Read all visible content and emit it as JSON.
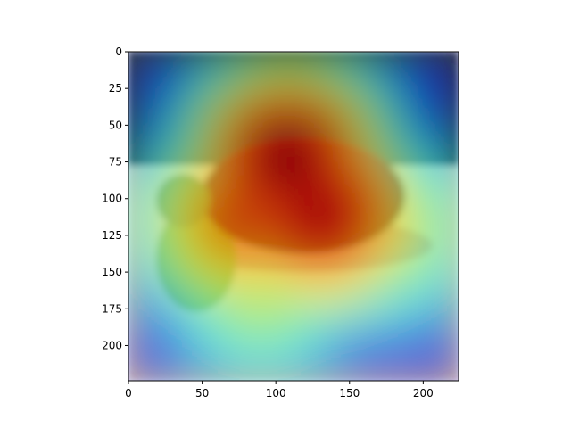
{
  "chart_data": {
    "type": "heatmap",
    "title": "",
    "xlabel": "",
    "ylabel": "",
    "xlim": [
      0,
      224
    ],
    "ylim": [
      224,
      0
    ],
    "y_inverted": true,
    "x_ticks": [
      0,
      50,
      100,
      150,
      200
    ],
    "y_ticks": [
      0,
      25,
      50,
      75,
      100,
      125,
      150,
      175,
      200
    ],
    "colormap": "jet",
    "overlay_on_image": true,
    "grid": false,
    "image_description_colors": {
      "table_top": "#e9c9a3",
      "backdrop": "#4a5a3c",
      "grapes_dark": "#5a1e12",
      "grapes_green": "#7a8a2a",
      "apple_red": "#d8231a"
    },
    "heat_peaks": [
      {
        "x": 108,
        "y": 72,
        "intensity": 1.0
      },
      {
        "x": 130,
        "y": 110,
        "intensity": 0.95
      },
      {
        "x": 75,
        "y": 115,
        "intensity": 0.8
      },
      {
        "x": 170,
        "y": 120,
        "intensity": 0.6
      },
      {
        "x": 90,
        "y": 160,
        "intensity": 0.55
      }
    ]
  }
}
